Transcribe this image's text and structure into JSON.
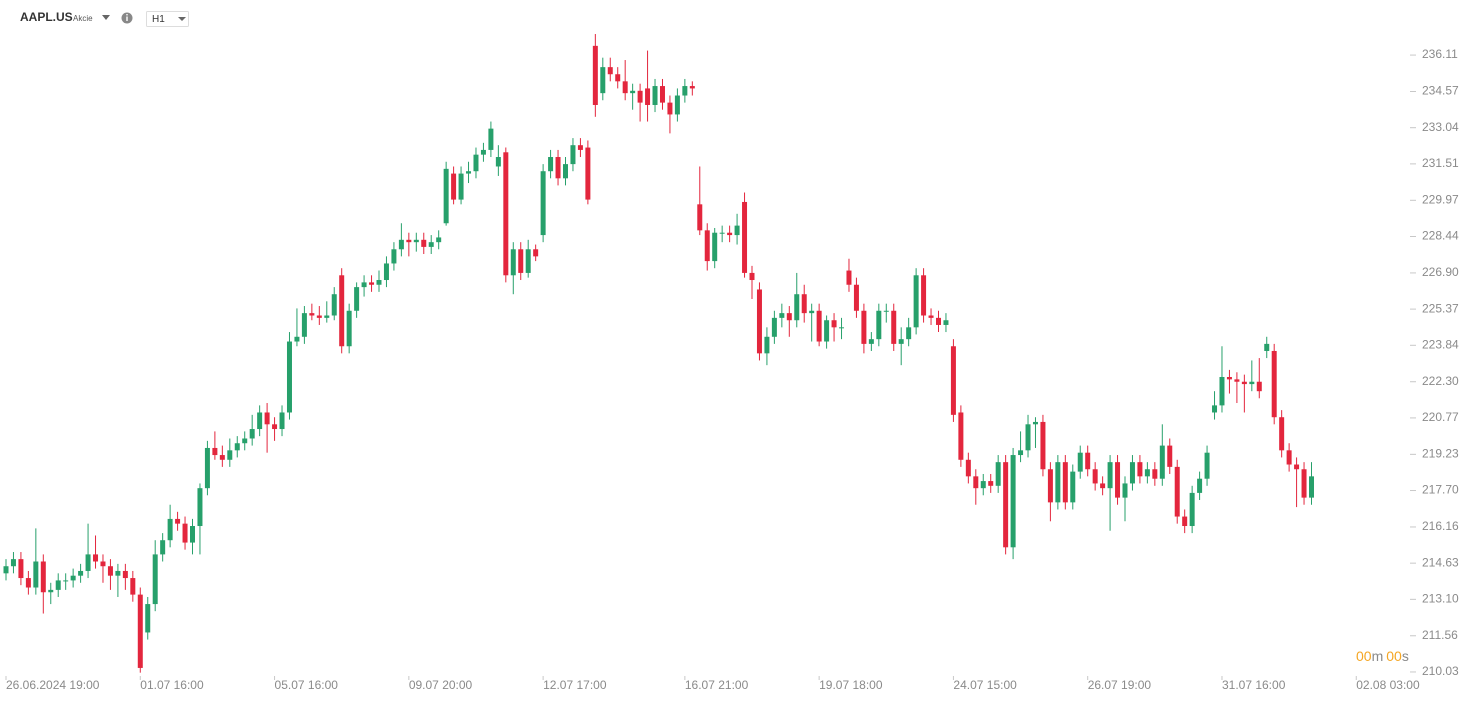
{
  "header": {
    "symbol": "AAPL.US",
    "asset_class": "Akcie",
    "timeframe": "H1"
  },
  "countdown": {
    "minutes": "00",
    "minutes_unit": "m",
    "seconds": "00",
    "seconds_unit": "s"
  },
  "chart_data": {
    "type": "candlestick",
    "up_color": "#27a06b",
    "down_color": "#e3263d",
    "ylim": [
      209.69,
      237.17
    ],
    "yticks": [
      236.11,
      234.57,
      233.04,
      231.51,
      229.97,
      228.44,
      {
        "value": 226.9,
        "label": "226.90"
      },
      225.37,
      223.84,
      {
        "value": 222.3,
        "label": "222.30"
      },
      220.77,
      219.23,
      {
        "value": 217.7,
        "label": "217.70"
      },
      216.16,
      214.63,
      {
        "value": 213.1,
        "label": "213.10"
      },
      211.56,
      210.03
    ],
    "categories": [
      "26.06.2024 19:00",
      null,
      null,
      null,
      null,
      null,
      null,
      null,
      null,
      null,
      null,
      null,
      null,
      null,
      null,
      null,
      null,
      null,
      "01.07 16:00",
      null,
      null,
      null,
      null,
      null,
      null,
      null,
      null,
      null,
      null,
      null,
      null,
      null,
      null,
      null,
      null,
      null,
      "05.07 16:00",
      null,
      null,
      null,
      null,
      null,
      null,
      null,
      null,
      null,
      null,
      null,
      null,
      null,
      null,
      null,
      null,
      null,
      "09.07 20:00",
      null,
      null,
      null,
      null,
      null,
      null,
      null,
      null,
      null,
      null,
      null,
      null,
      null,
      null,
      null,
      null,
      null,
      "12.07 17:00",
      null,
      null,
      null,
      null,
      null,
      null,
      null,
      null,
      null,
      null,
      null,
      null,
      null,
      null,
      null,
      null,
      null,
      null,
      "16.07 21:00",
      null,
      null,
      null,
      null,
      null,
      null,
      null,
      null,
      null,
      null,
      null,
      null,
      null,
      null,
      null,
      null,
      null,
      "19.07 18:00",
      null,
      null,
      null,
      null,
      null,
      null,
      null,
      null,
      null,
      null,
      null,
      null,
      null,
      null,
      null,
      null,
      null,
      "24.07 15:00",
      null,
      null,
      null,
      null,
      null,
      null,
      null,
      null,
      null,
      null,
      null,
      null,
      null,
      null,
      null,
      null,
      null,
      "26.07 19:00",
      null,
      null,
      null,
      null,
      null,
      null,
      null,
      null,
      null,
      null,
      null,
      null,
      null,
      null,
      null,
      null,
      null,
      "31.07 16:00",
      null,
      null,
      null,
      null,
      null,
      null,
      null,
      null,
      null,
      null,
      null,
      null,
      null,
      null,
      null,
      null,
      null,
      "02.08 03:00"
    ],
    "open": [
      214.2,
      214.5,
      214.8,
      214.0,
      213.6,
      214.7,
      213.4,
      213.5,
      213.9,
      213.9,
      214.1,
      214.3,
      215.0,
      214.7,
      214.5,
      214.1,
      214.3,
      214.0,
      213.3,
      211.7,
      212.9,
      215.0,
      215.6,
      216.5,
      216.3,
      215.5,
      216.2,
      217.8,
      219.5,
      219.2,
      219.0,
      219.4,
      219.7,
      219.9,
      220.3,
      221.0,
      220.5,
      220.3,
      221.0,
      224.0,
      224.2,
      225.2,
      225.1,
      225.0,
      225.1,
      226.8,
      223.8,
      225.3,
      226.3,
      226.5,
      226.4,
      226.6,
      227.3,
      227.9,
      228.3,
      228.2,
      228.3,
      228.0,
      228.2,
      229.0,
      231.1,
      230.0,
      231.1,
      231.2,
      231.9,
      232.1,
      231.4,
      232.0,
      226.8,
      227.9,
      226.9,
      227.9,
      228.5,
      231.2,
      231.8,
      230.9,
      231.5,
      232.3,
      232.2,
      236.5,
      234.5,
      235.6,
      235.3,
      235.0,
      234.5,
      234.6,
      234.7,
      234.0,
      234.8,
      234.1,
      233.6,
      234.4,
      234.8,
      229.8,
      228.7,
      227.4,
      228.6,
      228.6,
      228.5,
      229.9,
      226.9,
      226.2,
      223.5,
      224.2,
      225.0,
      225.2,
      224.9,
      226.0,
      225.2,
      225.3,
      224.0,
      224.9,
      224.6,
      227.0,
      226.4,
      225.3,
      223.9,
      224.1,
      225.3,
      225.3,
      223.9,
      224.1,
      224.6,
      226.8,
      225.1,
      225.0,
      224.7,
      223.8,
      221.0,
      219.0,
      218.3,
      217.8,
      218.1,
      217.9,
      218.9,
      215.3,
      219.2,
      219.4,
      220.5,
      220.6,
      218.6,
      217.2,
      218.9,
      217.2,
      218.5,
      219.3,
      218.6,
      218.0,
      217.8,
      218.9,
      217.4,
      218.0,
      218.9,
      218.3,
      218.6,
      218.2,
      219.6,
      218.7,
      216.6,
      216.2,
      217.6,
      218.2,
      221.0,
      221.3,
      222.5,
      222.4,
      222.3,
      222.2,
      222.3,
      223.6,
      223.6,
      220.8,
      219.4,
      218.8,
      218.6,
      217.4,
      null,
      null,
      null,
      null,
      null,
      null
    ],
    "high": [
      214.8,
      215.1,
      215.1,
      214.3,
      216.1,
      215.0,
      213.8,
      214.2,
      214.2,
      214.4,
      214.6,
      216.3,
      215.8,
      215.0,
      214.8,
      214.6,
      214.6,
      214.3,
      213.6,
      213.2,
      215.6,
      215.9,
      217.1,
      216.8,
      216.6,
      216.5,
      218.0,
      219.8,
      220.2,
      219.6,
      219.9,
      220.0,
      220.2,
      220.9,
      221.3,
      221.4,
      220.8,
      221.3,
      224.4,
      225.4,
      225.5,
      225.6,
      225.5,
      225.7,
      226.3,
      227.1,
      225.6,
      226.5,
      226.8,
      226.8,
      227.0,
      227.6,
      228.2,
      229.0,
      228.6,
      228.6,
      228.6,
      228.5,
      228.7,
      231.6,
      231.4,
      231.4,
      231.6,
      232.2,
      232.4,
      233.3,
      232.3,
      232.2,
      228.2,
      228.2,
      228.3,
      228.1,
      231.5,
      232.1,
      232.1,
      231.8,
      232.6,
      232.6,
      232.5,
      237.0,
      236.0,
      236.0,
      235.6,
      235.9,
      234.9,
      234.9,
      236.3,
      235.1,
      235.1,
      234.4,
      234.7,
      235.1,
      235.0,
      231.4,
      229.0,
      228.8,
      228.9,
      228.9,
      229.4,
      230.3,
      227.2,
      226.5,
      224.6,
      225.3,
      225.6,
      225.5,
      226.9,
      226.4,
      225.6,
      225.6,
      225.1,
      225.2,
      225.0,
      227.5,
      226.7,
      225.6,
      224.4,
      225.6,
      225.6,
      225.6,
      224.6,
      225.0,
      227.1,
      227.1,
      225.4,
      225.3,
      225.2,
      224.1,
      221.3,
      219.3,
      218.6,
      218.4,
      218.4,
      219.2,
      219.2,
      219.5,
      220.2,
      220.9,
      220.8,
      220.9,
      218.9,
      219.2,
      219.2,
      218.8,
      219.6,
      219.6,
      218.9,
      218.3,
      219.2,
      219.2,
      218.3,
      219.2,
      219.2,
      218.9,
      218.9,
      220.5,
      219.9,
      219.0,
      216.9,
      217.9,
      218.5,
      219.6,
      221.9,
      223.8,
      222.8,
      222.7,
      222.6,
      223.2,
      223.3,
      224.2,
      223.9,
      221.1,
      219.7,
      219.1,
      218.9,
      218.9,
      null,
      null,
      null,
      null,
      null,
      null
    ],
    "low": [
      213.9,
      214.2,
      213.7,
      213.3,
      213.3,
      212.5,
      212.9,
      213.2,
      213.5,
      213.6,
      213.8,
      214.0,
      214.4,
      213.8,
      213.5,
      213.2,
      213.5,
      213.0,
      210.0,
      211.4,
      212.6,
      214.7,
      215.3,
      216.0,
      215.2,
      215.0,
      215.0,
      217.5,
      219.0,
      218.7,
      218.7,
      219.1,
      219.4,
      219.6,
      220.0,
      219.3,
      219.8,
      220.0,
      220.7,
      223.8,
      223.9,
      224.9,
      224.7,
      224.8,
      224.9,
      223.5,
      223.5,
      225.0,
      225.9,
      226.1,
      226.1,
      226.3,
      227.0,
      227.6,
      227.6,
      227.8,
      227.7,
      227.7,
      227.9,
      228.9,
      229.8,
      229.8,
      230.7,
      230.9,
      231.6,
      231.8,
      231.0,
      226.5,
      226.0,
      226.6,
      226.7,
      227.4,
      228.2,
      230.9,
      230.6,
      230.6,
      231.2,
      231.8,
      229.8,
      233.5,
      234.2,
      235.0,
      234.7,
      234.2,
      233.8,
      233.3,
      233.3,
      233.7,
      233.8,
      232.8,
      233.3,
      234.1,
      234.4,
      228.5,
      227.0,
      227.1,
      228.2,
      228.2,
      228.1,
      226.7,
      225.8,
      223.2,
      223.0,
      223.9,
      224.6,
      224.2,
      224.6,
      224.8,
      224.0,
      223.8,
      223.7,
      224.0,
      224.1,
      226.1,
      225.0,
      223.5,
      223.6,
      223.8,
      224.8,
      223.6,
      223.0,
      223.8,
      224.3,
      224.8,
      224.7,
      224.4,
      224.4,
      220.6,
      218.7,
      218.0,
      217.1,
      217.5,
      217.6,
      217.6,
      215.0,
      214.8,
      218.9,
      219.1,
      219.5,
      218.3,
      216.4,
      216.9,
      216.9,
      216.9,
      218.2,
      218.3,
      217.7,
      217.5,
      216.0,
      217.1,
      216.4,
      217.7,
      218.0,
      218.0,
      217.9,
      217.9,
      218.4,
      216.3,
      215.9,
      215.9,
      217.3,
      217.9,
      220.7,
      221.0,
      221.8,
      221.4,
      221.0,
      221.9,
      221.6,
      223.3,
      220.5,
      219.1,
      218.5,
      217.0,
      217.1,
      217.1,
      null,
      null,
      null,
      null,
      null,
      null
    ],
    "close": [
      214.5,
      214.8,
      214.0,
      213.6,
      214.7,
      213.4,
      213.5,
      213.9,
      213.9,
      214.1,
      214.3,
      215.0,
      214.7,
      214.5,
      214.1,
      214.3,
      214.0,
      213.3,
      210.2,
      212.9,
      215.0,
      215.6,
      216.5,
      216.3,
      215.5,
      216.2,
      217.8,
      219.5,
      219.2,
      219.0,
      219.4,
      219.7,
      219.9,
      220.3,
      221.0,
      220.5,
      220.3,
      221.0,
      224.0,
      224.2,
      225.2,
      225.1,
      225.0,
      225.1,
      226.0,
      223.8,
      225.3,
      226.3,
      226.5,
      226.4,
      226.6,
      227.3,
      227.9,
      228.3,
      228.2,
      228.3,
      228.0,
      228.2,
      228.4,
      231.3,
      230.0,
      231.1,
      231.2,
      231.9,
      232.1,
      233.0,
      231.8,
      226.8,
      227.9,
      226.9,
      227.9,
      227.6,
      231.2,
      231.8,
      230.9,
      231.5,
      232.3,
      232.1,
      230.0,
      234.0,
      235.6,
      235.3,
      235.0,
      234.5,
      234.6,
      234.1,
      234.0,
      234.8,
      234.1,
      233.6,
      234.4,
      234.8,
      234.7,
      228.7,
      227.4,
      228.6,
      228.6,
      228.5,
      228.9,
      226.9,
      226.6,
      223.5,
      224.2,
      225.0,
      225.2,
      224.9,
      226.0,
      225.2,
      225.3,
      224.0,
      224.9,
      224.6,
      224.6,
      226.4,
      225.3,
      223.9,
      224.1,
      225.3,
      225.3,
      223.9,
      224.1,
      224.6,
      226.8,
      225.1,
      225.0,
      224.7,
      224.9,
      220.9,
      219.0,
      218.3,
      217.8,
      218.1,
      217.9,
      218.9,
      215.3,
      219.2,
      219.4,
      220.5,
      220.6,
      218.6,
      217.2,
      218.9,
      217.2,
      218.5,
      219.3,
      218.6,
      218.0,
      217.8,
      218.9,
      217.4,
      218.0,
      218.9,
      218.3,
      218.6,
      218.2,
      219.6,
      218.7,
      216.6,
      216.2,
      217.6,
      218.2,
      219.3,
      221.3,
      222.5,
      222.4,
      222.3,
      222.2,
      222.3,
      221.9,
      223.9,
      220.8,
      219.4,
      218.8,
      218.6,
      217.4,
      218.3,
      null,
      null,
      null,
      null,
      null,
      null
    ]
  }
}
